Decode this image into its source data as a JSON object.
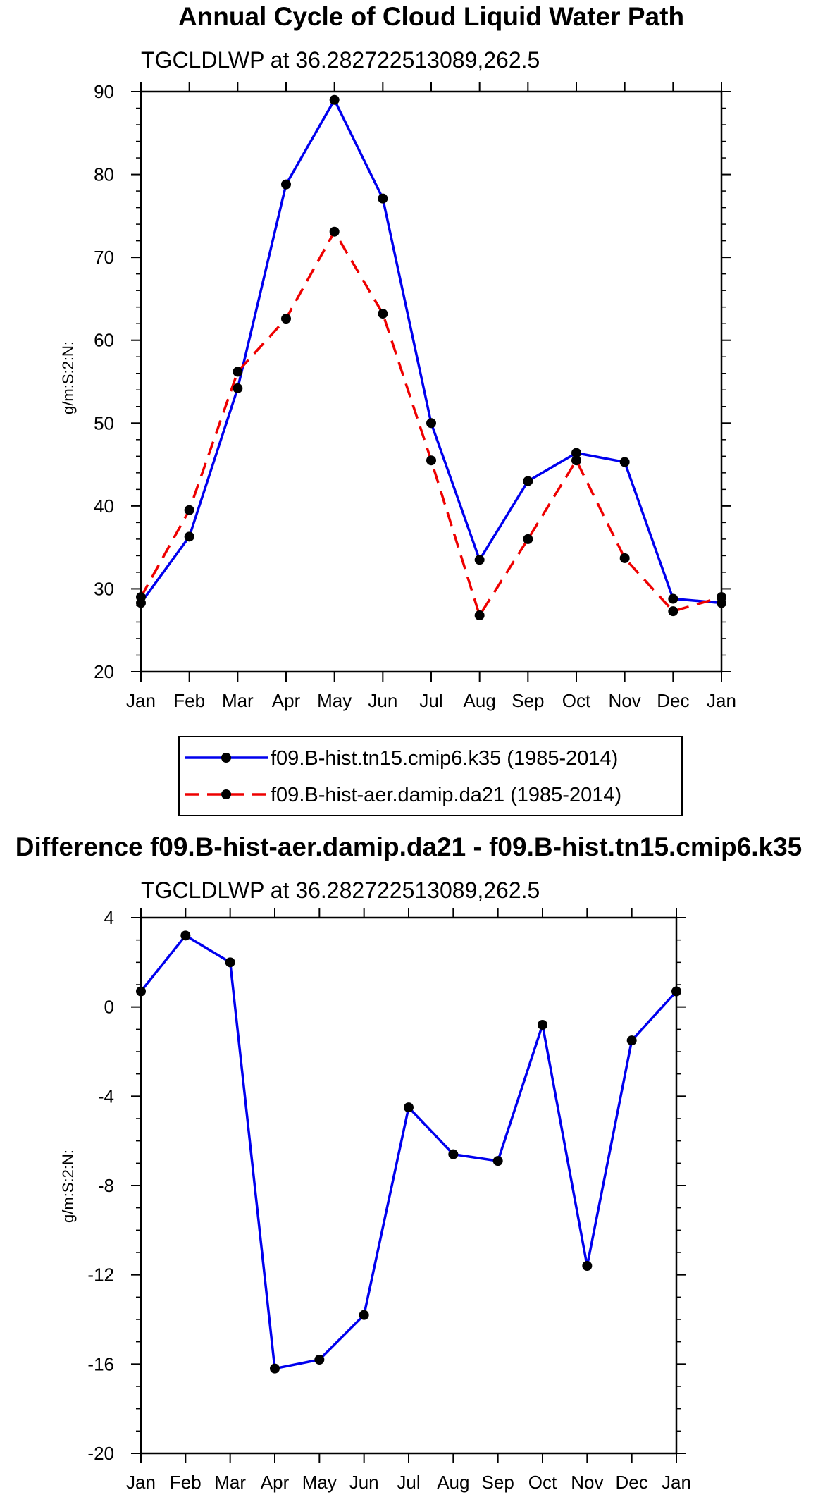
{
  "colors": {
    "series1": "#0000ee",
    "series2": "#ee0000",
    "marker": "#000000",
    "axis": "#000000"
  },
  "chart_data": [
    {
      "type": "line",
      "title": "Annual Cycle of Cloud Liquid Water Path",
      "subtitle": "TGCLDLWP at 36.282722513089,262.5",
      "ylabel": "g/m:S:2:N:",
      "xlabel": "",
      "categories": [
        "Jan",
        "Feb",
        "Mar",
        "Apr",
        "May",
        "Jun",
        "Jul",
        "Aug",
        "Sep",
        "Oct",
        "Nov",
        "Dec",
        "Jan"
      ],
      "ylim": [
        20,
        90
      ],
      "yticks": [
        "20",
        "30",
        "40",
        "50",
        "60",
        "70",
        "80",
        "90"
      ],
      "series": [
        {
          "name": "f09.B-hist.tn15.cmip6.k35 (1985-2014)",
          "style": "solid",
          "values": [
            28.3,
            36.3,
            54.2,
            78.8,
            89.0,
            77.1,
            50.0,
            33.5,
            43.0,
            46.4,
            45.3,
            28.8,
            28.3
          ]
        },
        {
          "name": "f09.B-hist-aer.damip.da21 (1985-2014)",
          "style": "dashed",
          "values": [
            29.0,
            39.5,
            56.2,
            62.6,
            73.1,
            63.2,
            45.5,
            26.8,
            36.0,
            45.5,
            33.7,
            27.3,
            29.0
          ]
        }
      ],
      "legend_position": "below"
    },
    {
      "type": "line",
      "title": "Difference f09.B-hist-aer.damip.da21 - f09.B-hist.tn15.cmip6.k35",
      "subtitle": "TGCLDLWP at 36.282722513089,262.5",
      "ylabel": "g/m:S:2:N:",
      "xlabel": "",
      "categories": [
        "Jan",
        "Feb",
        "Mar",
        "Apr",
        "May",
        "Jun",
        "Jul",
        "Aug",
        "Sep",
        "Oct",
        "Nov",
        "Dec",
        "Jan"
      ],
      "ylim": [
        -20,
        4
      ],
      "yticks": [
        "-20",
        "-16",
        "-12",
        "-8",
        "-4",
        "0",
        "4"
      ],
      "series": [
        {
          "name": "difference",
          "style": "solid",
          "values": [
            0.7,
            3.2,
            2.0,
            -16.2,
            -15.8,
            -13.8,
            -4.5,
            -6.6,
            -6.9,
            -0.8,
            -11.6,
            -1.5,
            0.7
          ]
        }
      ]
    }
  ]
}
